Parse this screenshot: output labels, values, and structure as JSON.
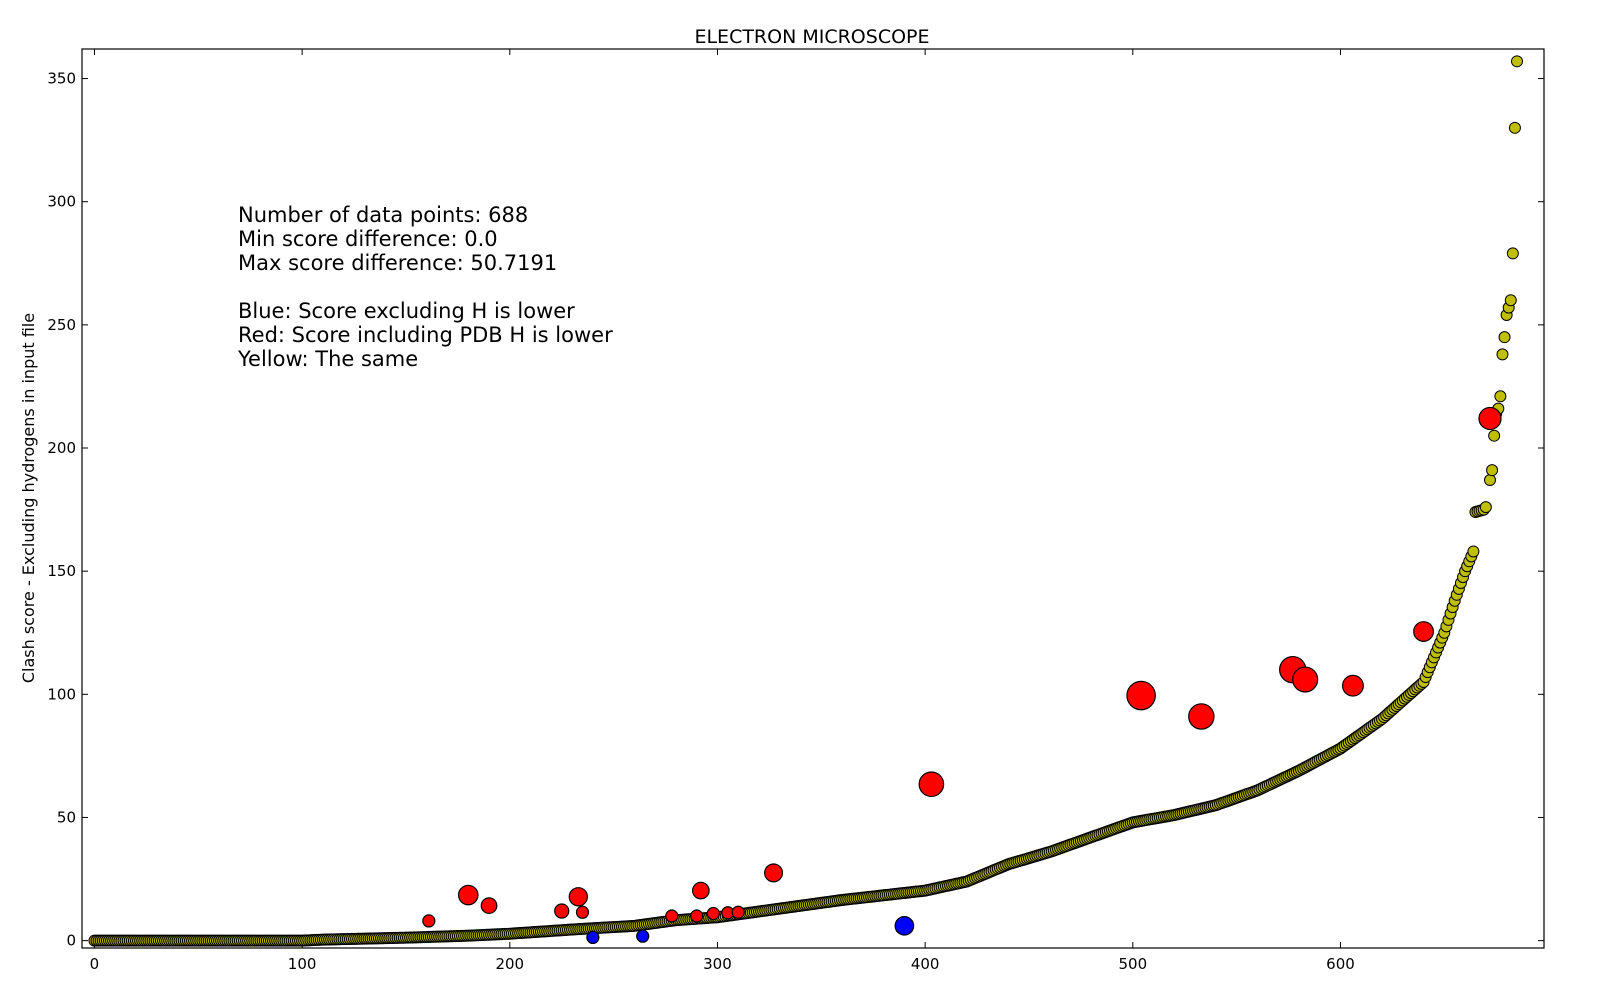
{
  "chart_data": {
    "type": "scatter",
    "title": "ELECTRON MICROSCOPE",
    "xlabel": "",
    "ylabel": "Clash score - Excluding hydrogens in input file",
    "xlim": [
      -6,
      698
    ],
    "ylim": [
      -3,
      362
    ],
    "xticks": [
      0,
      100,
      200,
      300,
      400,
      500,
      600
    ],
    "yticks": [
      0,
      50,
      100,
      150,
      200,
      250,
      300,
      350
    ],
    "grid": false,
    "annotation_lines": [
      "Number of data points: 688",
      "Min score difference: 0.0",
      "Max score difference: 50.7191",
      "",
      "Blue: Score excluding H is lower",
      "Red: Score including PDB H is lower",
      "Yellow: The same"
    ],
    "colors": {
      "yellow": "#bfbf00",
      "red": "#ff0000",
      "blue": "#0000ff",
      "edge": "#000000"
    },
    "baseline_anchors": [
      [
        0,
        0
      ],
      [
        100,
        0
      ],
      [
        110,
        0.4
      ],
      [
        150,
        1.2
      ],
      [
        180,
        2
      ],
      [
        200,
        2.8
      ],
      [
        230,
        4.5
      ],
      [
        260,
        6
      ],
      [
        280,
        8.3
      ],
      [
        300,
        9.5
      ],
      [
        330,
        13
      ],
      [
        360,
        16.5
      ],
      [
        400,
        20.3
      ],
      [
        420,
        24
      ],
      [
        440,
        31
      ],
      [
        460,
        36
      ],
      [
        480,
        42
      ],
      [
        500,
        48
      ],
      [
        520,
        51
      ],
      [
        540,
        55
      ],
      [
        560,
        61
      ],
      [
        580,
        69
      ],
      [
        600,
        78
      ],
      [
        620,
        90
      ],
      [
        640,
        105
      ],
      [
        650,
        125
      ],
      [
        655,
        138
      ],
      [
        660,
        150
      ],
      [
        664,
        158
      ],
      [
        665,
        174
      ],
      [
        669,
        175
      ],
      [
        670,
        176
      ]
    ],
    "series": [
      {
        "name": "Yellow: The same",
        "color": "#bfbf00",
        "outliers": [
          [
            672,
            187
          ],
          [
            673,
            191
          ],
          [
            674,
            205
          ],
          [
            675,
            214
          ],
          [
            676,
            216
          ],
          [
            677,
            221
          ],
          [
            678,
            238
          ],
          [
            679,
            245
          ],
          [
            680,
            254
          ],
          [
            681,
            257
          ],
          [
            682,
            260
          ],
          [
            683,
            279
          ],
          [
            684,
            330
          ],
          [
            685,
            357
          ]
        ]
      },
      {
        "name": "Red: Score including PDB H is lower",
        "color": "#ff0000",
        "points": [
          [
            161,
            8,
            0
          ],
          [
            180,
            18.5,
            6.5
          ],
          [
            190,
            14.2,
            1.5
          ],
          [
            225,
            12,
            0.5
          ],
          [
            233,
            17.8,
            4.5
          ],
          [
            235,
            11.5,
            0
          ],
          [
            278,
            10,
            0
          ],
          [
            290,
            10,
            0
          ],
          [
            292,
            20.3,
            2.4
          ],
          [
            298,
            11,
            0
          ],
          [
            305,
            11.3,
            0
          ],
          [
            310,
            11.5,
            0
          ],
          [
            327,
            27.5,
            4
          ],
          [
            403,
            63.5,
            18.5
          ],
          [
            504,
            99.5,
            32
          ],
          [
            533,
            91,
            21
          ],
          [
            577,
            110,
            24
          ],
          [
            583,
            106,
            20
          ],
          [
            606,
            103.5,
            9
          ],
          [
            640,
            125.5,
            7
          ],
          [
            672,
            212,
            12
          ]
        ]
      },
      {
        "name": "Blue: Score excluding H is lower",
        "color": "#0000ff",
        "points": [
          [
            240,
            1.3,
            0
          ],
          [
            264,
            1.8,
            0
          ],
          [
            390,
            6,
            5
          ]
        ]
      }
    ]
  }
}
